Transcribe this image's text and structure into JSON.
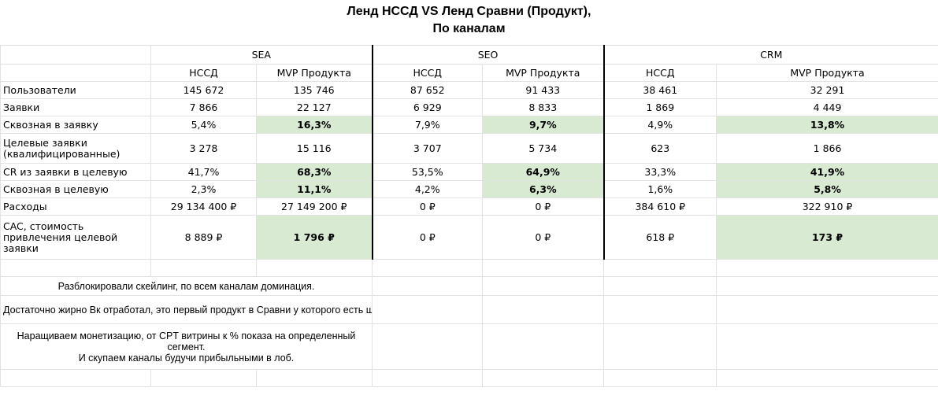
{
  "title": {
    "line1": "Ленд НССД VS Ленд Сравни (Продукт),",
    "line2": "По каналам"
  },
  "channels": [
    "SEA",
    "SEO",
    "CRM"
  ],
  "subheaders": [
    "НССД",
    "MVP Продукта",
    "НССД",
    "MVP Продукта",
    "НССД",
    "MVP Продукта"
  ],
  "rows": [
    {
      "label": "Пользователи",
      "values": [
        "145 672",
        "135 746",
        "87 652",
        "91 433",
        "38 461",
        "32 291"
      ]
    },
    {
      "label": "Заявки",
      "values": [
        "7 866",
        "22 127",
        "6 929",
        "8 833",
        "1 869",
        "4 449"
      ]
    },
    {
      "label": "Сквозная в заявку",
      "values": [
        "5,4%",
        "16,3%",
        "7,9%",
        "9,7%",
        "4,9%",
        "13,8%"
      ]
    },
    {
      "label": "Целевые заявки (квалифицированные)",
      "values": [
        "3 278",
        "15 116",
        "3 707",
        "5 734",
        "623",
        "1 866"
      ]
    },
    {
      "label": "CR из заявки в целевую",
      "values": [
        "41,7%",
        "68,3%",
        "53,5%",
        "64,9%",
        "33,3%",
        "41,9%"
      ]
    },
    {
      "label": "Сквозная в целевую",
      "values": [
        "2,3%",
        "11,1%",
        "4,2%",
        "6,3%",
        "1,6%",
        "5,8%"
      ]
    },
    {
      "label": "Расходы",
      "values": [
        "29 134 400 ₽",
        "27 149 200 ₽",
        "0 ₽",
        "0 ₽",
        "384 610 ₽",
        "322 910 ₽"
      ]
    },
    {
      "label": "CAC, стоимость привлечения целевой заявки",
      "values": [
        "8 889 ₽",
        "1 796 ₽",
        "0 ₽",
        "0 ₽",
        "618 ₽",
        "173 ₽"
      ]
    }
  ],
  "notes": [
    "Разблокировали скейлинг, по всем каналам доминация.",
    "Достаточно жирно Вк отработал, это первый продукт в Сравни у которого есть шансы окупать Вк в лоб.",
    "Наращиваем монетизацию, от CPT витрины к % показа на определенный сегмент.\nИ скупаем каналы будучи прибыльными в лоб."
  ],
  "colors": {
    "highlight": "#d9ead3",
    "grid": "#e2e2e2",
    "border": "#000000"
  }
}
